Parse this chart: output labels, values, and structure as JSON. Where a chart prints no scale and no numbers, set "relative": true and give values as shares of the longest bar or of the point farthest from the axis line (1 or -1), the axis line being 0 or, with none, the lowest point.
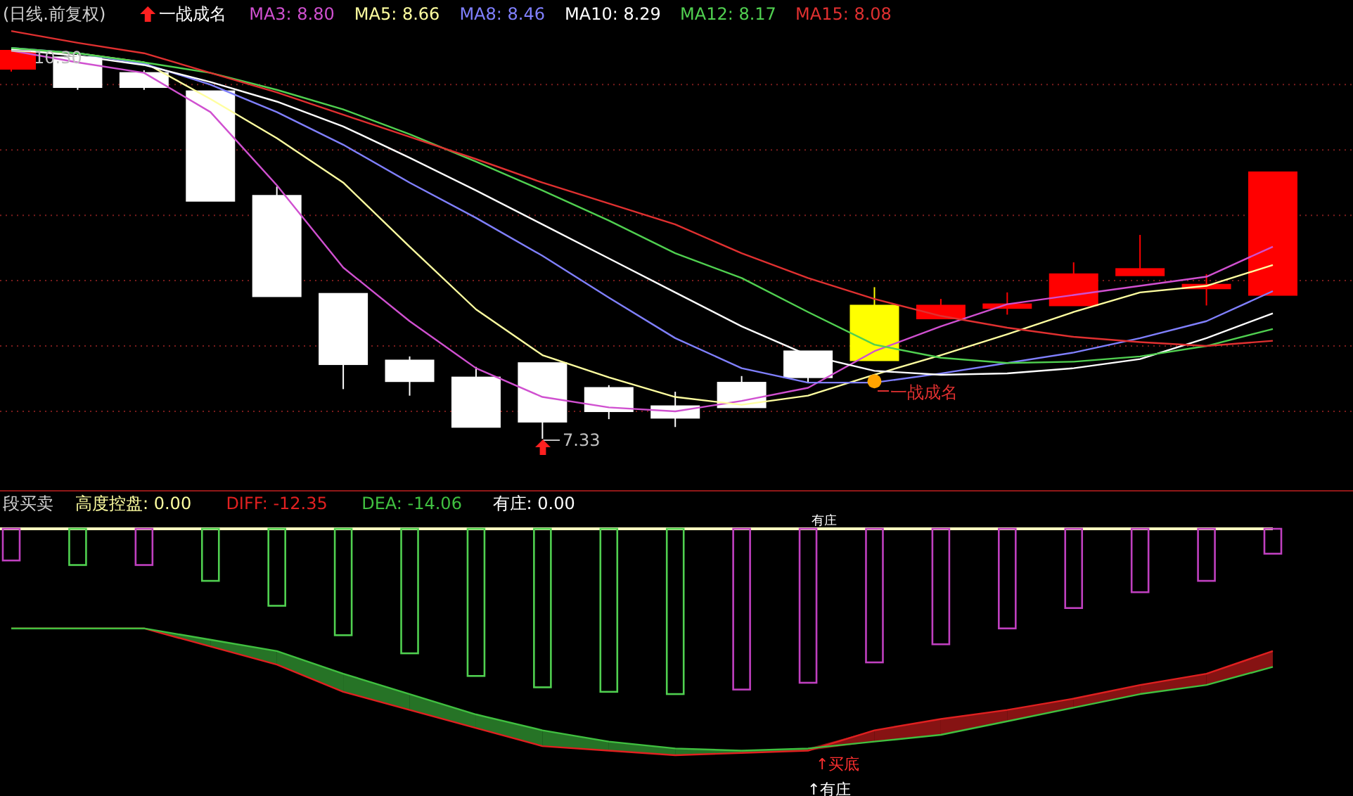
{
  "chart_data": [
    {
      "type": "candlestick",
      "title": "(日线.前复权)",
      "grid": "y",
      "legend": "top left",
      "categories": [
        null,
        null,
        null,
        null,
        null,
        null,
        null,
        null,
        null,
        null,
        null,
        null,
        null,
        null,
        null,
        null,
        null,
        null,
        null,
        null
      ],
      "ohlc": [
        [
          10.16,
          10.3,
          10.14,
          10.3
        ],
        [
          10.25,
          10.28,
          10.0,
          10.02
        ],
        [
          10.13,
          10.15,
          10.0,
          10.02
        ],
        [
          9.99,
          9.99,
          9.15,
          9.15
        ],
        [
          9.19,
          9.26,
          8.42,
          8.42
        ],
        [
          8.44,
          8.44,
          7.71,
          7.9
        ],
        [
          7.93,
          7.96,
          7.66,
          7.77
        ],
        [
          7.8,
          7.88,
          7.42,
          7.42
        ],
        [
          7.91,
          7.91,
          7.33,
          7.46
        ],
        [
          7.72,
          7.74,
          7.48,
          7.54
        ],
        [
          7.58,
          7.69,
          7.42,
          7.49
        ],
        [
          7.76,
          7.81,
          7.57,
          7.57
        ],
        [
          8.0,
          8.0,
          7.76,
          7.8
        ],
        [
          7.93,
          8.49,
          7.93,
          8.35
        ],
        [
          8.25,
          8.4,
          8.25,
          8.35
        ],
        [
          8.33,
          8.45,
          8.28,
          8.36
        ],
        [
          8.35,
          8.68,
          8.35,
          8.59
        ],
        [
          8.58,
          8.89,
          8.58,
          8.63
        ],
        [
          8.48,
          8.59,
          8.35,
          8.51
        ],
        [
          8.43,
          9.37,
          8.43,
          9.37
        ]
      ],
      "colors": [
        "#ff0000",
        "#ffffff",
        "#ffffff",
        "#ffffff",
        "#ffffff",
        "#ffffff",
        "#ffffff",
        "#ffffff",
        "#ffffff",
        "#ffffff",
        "#ffffff",
        "#ffffff",
        "#ffffff",
        "#ffff00",
        "#ff0000",
        "#ff0000",
        "#ff0000",
        "#ff0000",
        "#ff0000",
        "#ff0000"
      ],
      "yticks": [
        {
          "value": 10.04,
          "label": null
        },
        {
          "value": 9.54,
          "label": null
        },
        {
          "value": 9.04,
          "label": null
        },
        {
          "value": 8.54,
          "label": null
        },
        {
          "value": 8.04,
          "label": null
        },
        {
          "value": 7.54,
          "label": null
        }
      ],
      "series": [
        {
          "type": "line",
          "name": "MA3: 8.80",
          "color": "#d050d0",
          "values": [
            10.3,
            10.21,
            10.13,
            9.83,
            9.27,
            8.64,
            8.23,
            7.87,
            7.65,
            7.57,
            7.54,
            7.62,
            7.72,
            8.0,
            8.19,
            8.36,
            8.43,
            8.5,
            8.57,
            8.8
          ]
        },
        {
          "type": "line",
          "name": "MA5: 8.66",
          "color": "#ffffa0",
          "values": [
            10.3,
            10.28,
            10.21,
            9.93,
            9.63,
            9.29,
            8.8,
            8.32,
            7.97,
            7.8,
            7.65,
            7.59,
            7.66,
            7.82,
            7.97,
            8.13,
            8.3,
            8.45,
            8.5,
            8.66
          ]
        },
        {
          "type": "line",
          "name": "MA8: 8.46",
          "color": "#8080ff",
          "values": [
            10.32,
            10.28,
            10.2,
            10.04,
            9.83,
            9.58,
            9.29,
            9.02,
            8.73,
            8.41,
            8.1,
            7.87,
            7.76,
            7.76,
            7.83,
            7.91,
            7.99,
            8.1,
            8.23,
            8.46
          ]
        },
        {
          "type": "line",
          "name": "MA10: 8.29",
          "color": "#ffffff",
          "values": [
            10.31,
            10.26,
            10.19,
            10.06,
            9.91,
            9.72,
            9.48,
            9.23,
            8.97,
            8.71,
            8.45,
            8.19,
            7.97,
            7.85,
            7.82,
            7.83,
            7.87,
            7.94,
            8.1,
            8.29
          ]
        },
        {
          "type": "line",
          "name": "MA12: 8.17",
          "color": "#50d050",
          "values": [
            10.32,
            10.28,
            10.21,
            10.13,
            10.0,
            9.85,
            9.66,
            9.45,
            9.23,
            9.0,
            8.75,
            8.56,
            8.3,
            8.05,
            7.95,
            7.91,
            7.92,
            7.96,
            8.04,
            8.17
          ]
        },
        {
          "type": "line",
          "name": "MA15: 8.08",
          "color": "#e03030",
          "values": [
            10.45,
            10.36,
            10.28,
            10.13,
            9.98,
            9.81,
            9.64,
            9.47,
            9.29,
            9.13,
            8.97,
            8.75,
            8.56,
            8.4,
            8.27,
            8.18,
            8.11,
            8.07,
            8.04,
            8.08
          ]
        },
        {
          "type": "scatter",
          "color": "#ffa500",
          "marker": "circle",
          "values": [
            null,
            null,
            null,
            null,
            null,
            null,
            null,
            null,
            null,
            null,
            null,
            null,
            null,
            7.77,
            null,
            null,
            null,
            null,
            null,
            null
          ]
        }
      ],
      "annotations": [
        "一战成名",
        "10.30",
        "7.33",
        "一战成名"
      ]
    },
    {
      "type": "bar",
      "title": "段买卖",
      "relative": true,
      "legend": "top left",
      "categories": [
        null,
        null,
        null,
        null,
        null,
        null,
        null,
        null,
        null,
        null,
        null,
        null,
        null,
        null,
        null,
        null,
        null,
        null,
        null,
        null
      ],
      "series": [
        {
          "type": "bar",
          "colors": [
            "#c040c0",
            "#50d050",
            "#c040c0",
            "#50d050",
            "#50d050",
            "#50d050",
            "#50d050",
            "#50d050",
            "#50d050",
            "#50d050",
            "#50d050",
            "#c040c0",
            "#c040c0",
            "#c040c0",
            "#c040c0",
            "#c040c0",
            "#c040c0",
            "#c040c0",
            "#c040c0",
            "#c040c0"
          ],
          "values": [
            -0.14,
            -0.16,
            -0.16,
            -0.23,
            -0.34,
            -0.47,
            -0.55,
            -0.65,
            -0.7,
            -0.72,
            -0.73,
            -0.71,
            -0.68,
            -0.59,
            -0.51,
            -0.44,
            -0.35,
            -0.28,
            -0.23,
            -0.11
          ]
        },
        {
          "type": "line",
          "name": "DIFF: -12.35",
          "color": "#e02020",
          "values": [
            -0.44,
            -0.44,
            -0.44,
            -0.52,
            -0.6,
            -0.72,
            -0.8,
            -0.88,
            -0.96,
            -0.98,
            -1,
            -0.99,
            -0.98,
            -0.89,
            -0.84,
            -0.8,
            -0.75,
            -0.69,
            -0.64,
            -0.54
          ],
          "lower": [
            null,
            null,
            null,
            null,
            null,
            null,
            null,
            null,
            null,
            null,
            null,
            null,
            -0.98,
            -0.94,
            -0.91,
            -0.85,
            -0.79,
            -0.73,
            -0.69,
            -0.61
          ],
          "upper": [
            null,
            null,
            null,
            null,
            null,
            null,
            null,
            null,
            null,
            null,
            null,
            null,
            -0.97,
            -0.89,
            -0.84,
            -0.8,
            -0.75,
            -0.69,
            -0.64,
            -0.54
          ]
        },
        {
          "type": "line",
          "name": "DEA: -14.06",
          "color": "#40c040",
          "values": [
            -0.44,
            -0.44,
            -0.44,
            -0.49,
            -0.54,
            -0.64,
            -0.73,
            -0.82,
            -0.89,
            -0.94,
            -0.97,
            -0.98,
            -0.97,
            -0.94,
            -0.91,
            -0.85,
            -0.79,
            -0.73,
            -0.69,
            -0.61
          ],
          "lower": [
            null,
            null,
            -0.44,
            -0.52,
            -0.6,
            -0.72,
            -0.8,
            -0.88,
            -0.96,
            -0.98,
            -1,
            -0.99,
            -0.98,
            null,
            null,
            null,
            null,
            null,
            null,
            null
          ],
          "upper": [
            null,
            null,
            -0.44,
            -0.49,
            -0.54,
            -0.64,
            -0.73,
            -0.82,
            -0.89,
            -0.94,
            -0.97,
            -0.98,
            -0.97,
            null,
            null,
            null,
            null,
            null,
            null,
            null
          ]
        }
      ],
      "annotations": [
        "高度控盘: 0.00",
        "有庄: 0.00",
        "有庄",
        "↑买底",
        "↑有庄"
      ]
    }
  ]
}
